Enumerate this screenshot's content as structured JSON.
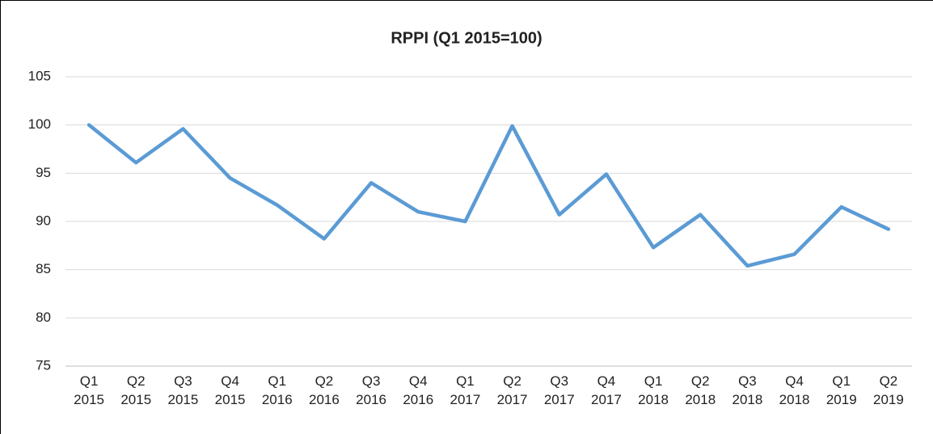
{
  "chart_data": {
    "type": "line",
    "title": "RPPI (Q1 2015=100)",
    "categories": [
      "Q1 2015",
      "Q2 2015",
      "Q3 2015",
      "Q4 2015",
      "Q1 2016",
      "Q2 2016",
      "Q3 2016",
      "Q4 2016",
      "Q1 2017",
      "Q2 2017",
      "Q3 2017",
      "Q4 2017",
      "Q1 2018",
      "Q2 2018",
      "Q3 2018",
      "Q4 2018",
      "Q1 2019",
      "Q2 2019"
    ],
    "values": [
      100,
      96.1,
      99.6,
      94.5,
      91.7,
      88.2,
      94.0,
      91.0,
      90.0,
      99.9,
      90.7,
      94.9,
      87.3,
      90.7,
      85.4,
      86.6,
      91.5,
      89.2
    ],
    "color": "#5b9bd5",
    "ylim": [
      75,
      105
    ],
    "yticks": [
      75,
      80,
      85,
      90,
      95,
      100,
      105
    ],
    "grid": true
  }
}
